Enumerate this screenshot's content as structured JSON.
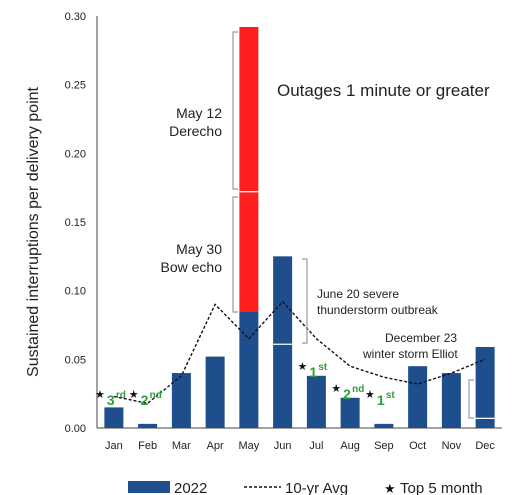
{
  "chart_data": {
    "type": "bar",
    "title": "Outages 1 minute or greater",
    "ylabel": "Sustained interruptions per delivery point",
    "xlabel": "",
    "ylim": [
      0,
      0.3
    ],
    "yticks": [
      "0.00",
      "0.05",
      "0.10",
      "0.15",
      "0.20",
      "0.25",
      "0.30"
    ],
    "categories": [
      "Jan",
      "Feb",
      "Mar",
      "Apr",
      "May",
      "Jun",
      "Jul",
      "Aug",
      "Sep",
      "Oct",
      "Nov",
      "Dec"
    ],
    "series": [
      {
        "name": "2022",
        "type": "bar",
        "color": "#1f4e8c",
        "values": [
          0.015,
          0.003,
          0.04,
          0.052,
          0.085,
          0.125,
          0.038,
          0.022,
          0.003,
          0.045,
          0.04,
          0.059
        ]
      },
      {
        "name": "10-yr Avg",
        "type": "line",
        "style": "dashed",
        "color": "#111111",
        "values": [
          0.023,
          0.018,
          0.038,
          0.09,
          0.065,
          0.092,
          0.065,
          0.045,
          0.037,
          0.032,
          0.04,
          0.05
        ]
      }
    ],
    "may_event_segment": {
      "category": "May",
      "from": 0.085,
      "to": 0.292,
      "color": "#ff1f1f"
    },
    "top5_months": [
      {
        "category": "Jan",
        "rank": "3",
        "suffix": "rd"
      },
      {
        "category": "Feb",
        "rank": "2",
        "suffix": "nd"
      },
      {
        "category": "Jul",
        "rank": "1",
        "suffix": "st"
      },
      {
        "category": "Aug",
        "rank": "2",
        "suffix": "nd"
      },
      {
        "category": "Sep",
        "rank": "1",
        "suffix": "st"
      }
    ],
    "annotations": {
      "may12_line1": "May 12",
      "may12_line2": "Derecho",
      "may30_line1": "May 30",
      "may30_line2": "Bow echo",
      "june20_line1": "June 20 severe",
      "june20_line2": "thunderstorm outbreak",
      "dec23_line1": "December 23",
      "dec23_line2": "winter storm Elliot"
    },
    "legend": {
      "position": "bottom",
      "items": [
        "2022",
        "10-yr Avg",
        "Top 5 month"
      ]
    },
    "grid": false
  }
}
